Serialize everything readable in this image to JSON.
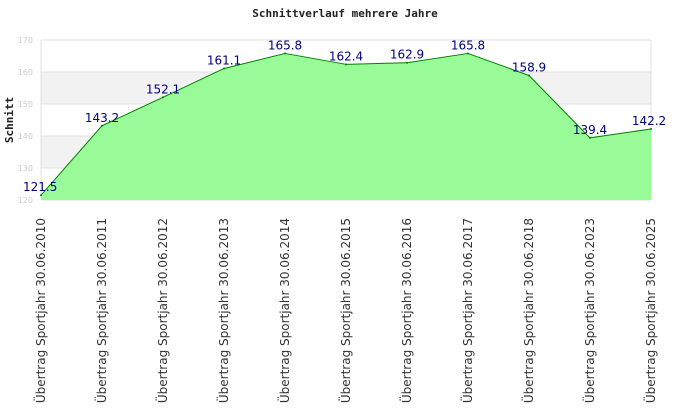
{
  "chart_data": {
    "type": "area",
    "title": "Schnittverlauf mehrere Jahre",
    "ylabel": "Schnitt",
    "xlabel": "",
    "ylim": [
      120,
      170
    ],
    "yticks": [
      "120",
      "130",
      "140",
      "150",
      "160",
      "170"
    ],
    "grid": true,
    "legend": "none",
    "categories": [
      "Übertrag Sportjahr 30.06.2010",
      "Übertrag Sportjahr 30.06.2011",
      "Übertrag Sportjahr 30.06.2012",
      "Übertrag Sportjahr 30.06.2013",
      "Übertrag Sportjahr 30.06.2014",
      "Übertrag Sportjahr 30.06.2015",
      "Übertrag Sportjahr 30.06.2016",
      "Übertrag Sportjahr 30.06.2017",
      "Übertrag Sportjahr 30.06.2018",
      "Übertrag Sportjahr 30.06.2023",
      "Übertrag Sportjahr 30.06.2025"
    ],
    "values": [
      121.5,
      143.2,
      152.1,
      161.1,
      165.8,
      162.4,
      162.9,
      165.8,
      158.9,
      139.4,
      142.2
    ],
    "labels": [
      "121.5",
      "143.2",
      "152.1",
      "161.1",
      "165.8",
      "162.4",
      "162.9",
      "165.8",
      "158.9",
      "139.4",
      "142.2"
    ],
    "colors": {
      "fill": "#98fb98",
      "line": "#008000",
      "band": "#f2f2f2",
      "grid": "#e0e0e0",
      "label": "#000080"
    }
  }
}
